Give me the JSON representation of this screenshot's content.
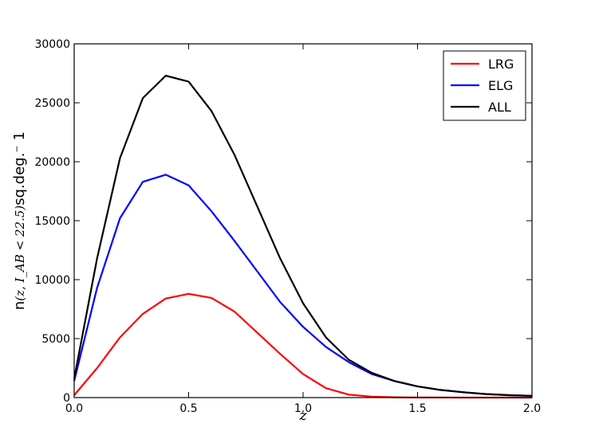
{
  "chart_data": {
    "type": "line",
    "title": "",
    "xlabel": "z",
    "ylabel": {
      "prefix": "n",
      "math": "(z, I_AB < 22.5)",
      "suffix": "sq.deg.⁻ 1"
    },
    "xlim": [
      0.0,
      2.0
    ],
    "ylim": [
      0,
      30000
    ],
    "x_ticks": [
      "0.0",
      "0.5",
      "1.0",
      "1.5",
      "2.0"
    ],
    "y_ticks": [
      "0",
      "5000",
      "10000",
      "15000",
      "20000",
      "25000",
      "30000"
    ],
    "grid": false,
    "legend_position": "top-right",
    "x": [
      0.0,
      0.1,
      0.2,
      0.3,
      0.4,
      0.5,
      0.6,
      0.7,
      0.8,
      0.9,
      1.0,
      1.1,
      1.2,
      1.3,
      1.4,
      1.5,
      1.6,
      1.7,
      1.8,
      1.9,
      2.0
    ],
    "series": [
      {
        "name": "LRG",
        "color": "#ff0000",
        "values": [
          200,
          2500,
          5100,
          7100,
          8400,
          8800,
          8450,
          7300,
          5500,
          3700,
          2000,
          800,
          250,
          80,
          30,
          10,
          5,
          0,
          0,
          0,
          0
        ]
      },
      {
        "name": "ELG",
        "color": "#0000ff",
        "values": [
          1400,
          9300,
          15200,
          18300,
          18900,
          18000,
          15800,
          13300,
          10700,
          8100,
          6000,
          4300,
          3000,
          2000,
          1400,
          950,
          650,
          450,
          300,
          200,
          150
        ]
      },
      {
        "name": "ALL",
        "color": "#000000",
        "values": [
          1600,
          11800,
          20300,
          25400,
          27300,
          26800,
          24300,
          20600,
          16200,
          11800,
          8000,
          5100,
          3200,
          2100,
          1400,
          950,
          650,
          450,
          300,
          200,
          150
        ]
      }
    ]
  }
}
